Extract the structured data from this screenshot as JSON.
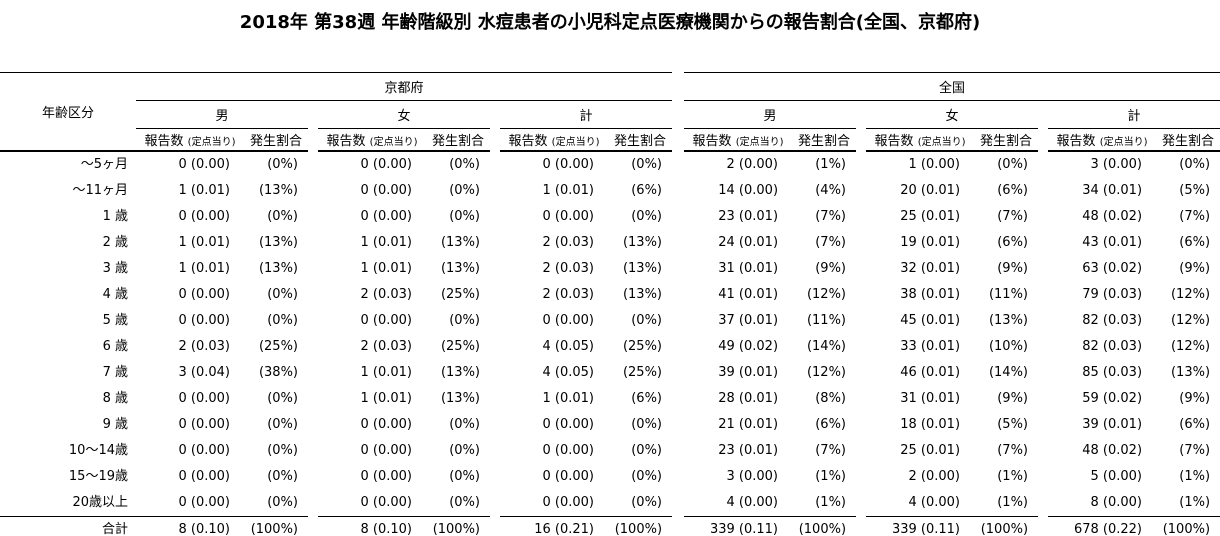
{
  "title": "2018年 第38週 年齢階級別 水痘患者の小児科定点医療機関からの報告割合(全国、京都府)",
  "table": {
    "corner_header": "年齢区分",
    "regions": [
      "京都府",
      "全国"
    ],
    "sexes": [
      "男",
      "女",
      "計"
    ],
    "sub_count": "報告数",
    "sub_count_note": "(定点当り)",
    "sub_pct": "発生割合"
  },
  "chart_data": {
    "type": "table",
    "title": "2018年 第38週 年齢階級別 水痘患者の小児科定点医療機関からの報告割合(全国、京都府)",
    "row_header": "年齢区分",
    "col_groups": [
      "京都府 男",
      "京都府 女",
      "京都府 計",
      "全国 男",
      "全国 女",
      "全国 計"
    ],
    "col_metrics": [
      "報告数",
      "定点当り",
      "発生割合"
    ],
    "rows": [
      {
        "age": "～5ヶ月",
        "cells": [
          [
            0,
            "0.00",
            "0%"
          ],
          [
            0,
            "0.00",
            "0%"
          ],
          [
            0,
            "0.00",
            "0%"
          ],
          [
            2,
            "0.00",
            "1%"
          ],
          [
            1,
            "0.00",
            "0%"
          ],
          [
            3,
            "0.00",
            "0%"
          ]
        ]
      },
      {
        "age": "～11ヶ月",
        "cells": [
          [
            1,
            "0.01",
            "13%"
          ],
          [
            0,
            "0.00",
            "0%"
          ],
          [
            1,
            "0.01",
            "6%"
          ],
          [
            14,
            "0.00",
            "4%"
          ],
          [
            20,
            "0.01",
            "6%"
          ],
          [
            34,
            "0.01",
            "5%"
          ]
        ]
      },
      {
        "age": "1 歳",
        "cells": [
          [
            0,
            "0.00",
            "0%"
          ],
          [
            0,
            "0.00",
            "0%"
          ],
          [
            0,
            "0.00",
            "0%"
          ],
          [
            23,
            "0.01",
            "7%"
          ],
          [
            25,
            "0.01",
            "7%"
          ],
          [
            48,
            "0.02",
            "7%"
          ]
        ]
      },
      {
        "age": "2 歳",
        "cells": [
          [
            1,
            "0.01",
            "13%"
          ],
          [
            1,
            "0.01",
            "13%"
          ],
          [
            2,
            "0.03",
            "13%"
          ],
          [
            24,
            "0.01",
            "7%"
          ],
          [
            19,
            "0.01",
            "6%"
          ],
          [
            43,
            "0.01",
            "6%"
          ]
        ]
      },
      {
        "age": "3 歳",
        "cells": [
          [
            1,
            "0.01",
            "13%"
          ],
          [
            1,
            "0.01",
            "13%"
          ],
          [
            2,
            "0.03",
            "13%"
          ],
          [
            31,
            "0.01",
            "9%"
          ],
          [
            32,
            "0.01",
            "9%"
          ],
          [
            63,
            "0.02",
            "9%"
          ]
        ]
      },
      {
        "age": "4 歳",
        "cells": [
          [
            0,
            "0.00",
            "0%"
          ],
          [
            2,
            "0.03",
            "25%"
          ],
          [
            2,
            "0.03",
            "13%"
          ],
          [
            41,
            "0.01",
            "12%"
          ],
          [
            38,
            "0.01",
            "11%"
          ],
          [
            79,
            "0.03",
            "12%"
          ]
        ]
      },
      {
        "age": "5 歳",
        "cells": [
          [
            0,
            "0.00",
            "0%"
          ],
          [
            0,
            "0.00",
            "0%"
          ],
          [
            0,
            "0.00",
            "0%"
          ],
          [
            37,
            "0.01",
            "11%"
          ],
          [
            45,
            "0.01",
            "13%"
          ],
          [
            82,
            "0.03",
            "12%"
          ]
        ]
      },
      {
        "age": "6 歳",
        "cells": [
          [
            2,
            "0.03",
            "25%"
          ],
          [
            2,
            "0.03",
            "25%"
          ],
          [
            4,
            "0.05",
            "25%"
          ],
          [
            49,
            "0.02",
            "14%"
          ],
          [
            33,
            "0.01",
            "10%"
          ],
          [
            82,
            "0.03",
            "12%"
          ]
        ]
      },
      {
        "age": "7 歳",
        "cells": [
          [
            3,
            "0.04",
            "38%"
          ],
          [
            1,
            "0.01",
            "13%"
          ],
          [
            4,
            "0.05",
            "25%"
          ],
          [
            39,
            "0.01",
            "12%"
          ],
          [
            46,
            "0.01",
            "14%"
          ],
          [
            85,
            "0.03",
            "13%"
          ]
        ]
      },
      {
        "age": "8 歳",
        "cells": [
          [
            0,
            "0.00",
            "0%"
          ],
          [
            1,
            "0.01",
            "13%"
          ],
          [
            1,
            "0.01",
            "6%"
          ],
          [
            28,
            "0.01",
            "8%"
          ],
          [
            31,
            "0.01",
            "9%"
          ],
          [
            59,
            "0.02",
            "9%"
          ]
        ]
      },
      {
        "age": "9 歳",
        "cells": [
          [
            0,
            "0.00",
            "0%"
          ],
          [
            0,
            "0.00",
            "0%"
          ],
          [
            0,
            "0.00",
            "0%"
          ],
          [
            21,
            "0.01",
            "6%"
          ],
          [
            18,
            "0.01",
            "5%"
          ],
          [
            39,
            "0.01",
            "6%"
          ]
        ]
      },
      {
        "age": "10～14歳",
        "cells": [
          [
            0,
            "0.00",
            "0%"
          ],
          [
            0,
            "0.00",
            "0%"
          ],
          [
            0,
            "0.00",
            "0%"
          ],
          [
            23,
            "0.01",
            "7%"
          ],
          [
            25,
            "0.01",
            "7%"
          ],
          [
            48,
            "0.02",
            "7%"
          ]
        ]
      },
      {
        "age": "15～19歳",
        "cells": [
          [
            0,
            "0.00",
            "0%"
          ],
          [
            0,
            "0.00",
            "0%"
          ],
          [
            0,
            "0.00",
            "0%"
          ],
          [
            3,
            "0.00",
            "1%"
          ],
          [
            2,
            "0.00",
            "1%"
          ],
          [
            5,
            "0.00",
            "1%"
          ]
        ]
      },
      {
        "age": "20歳以上",
        "cells": [
          [
            0,
            "0.00",
            "0%"
          ],
          [
            0,
            "0.00",
            "0%"
          ],
          [
            0,
            "0.00",
            "0%"
          ],
          [
            4,
            "0.00",
            "1%"
          ],
          [
            4,
            "0.00",
            "1%"
          ],
          [
            8,
            "0.00",
            "1%"
          ]
        ]
      },
      {
        "age": "合計",
        "cells": [
          [
            8,
            "0.10",
            "100%"
          ],
          [
            8,
            "0.10",
            "100%"
          ],
          [
            16,
            "0.21",
            "100%"
          ],
          [
            339,
            "0.11",
            "100%"
          ],
          [
            339,
            "0.11",
            "100%"
          ],
          [
            678,
            "0.22",
            "100%"
          ]
        ]
      }
    ]
  }
}
